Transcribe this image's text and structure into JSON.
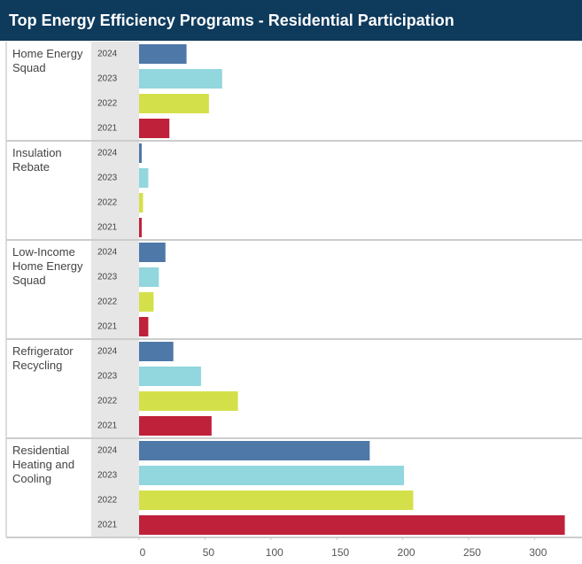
{
  "chart_data": {
    "type": "bar",
    "orientation": "horizontal",
    "title": "Top Energy Efficiency Programs - Residential Participation",
    "categories": [
      "Home Energy Squad",
      "Insulation Rebate",
      "Low-Income Home Energy Squad",
      "Refrigerator Recycling",
      "Residential Heating and Cooling"
    ],
    "series": [
      {
        "name": "2024",
        "color": "#4e78a8",
        "values": [
          36,
          2,
          20,
          26,
          175
        ]
      },
      {
        "name": "2023",
        "color": "#92d6de",
        "values": [
          63,
          7,
          15,
          47,
          201
        ]
      },
      {
        "name": "2022",
        "color": "#d4e04a",
        "values": [
          53,
          3,
          11,
          75,
          208
        ]
      },
      {
        "name": "2021",
        "color": "#c0213a",
        "values": [
          23,
          2,
          7,
          55,
          323
        ]
      }
    ],
    "xlim": [
      0,
      330
    ],
    "xticks": [
      0,
      50,
      100,
      150,
      200,
      250,
      300
    ]
  }
}
